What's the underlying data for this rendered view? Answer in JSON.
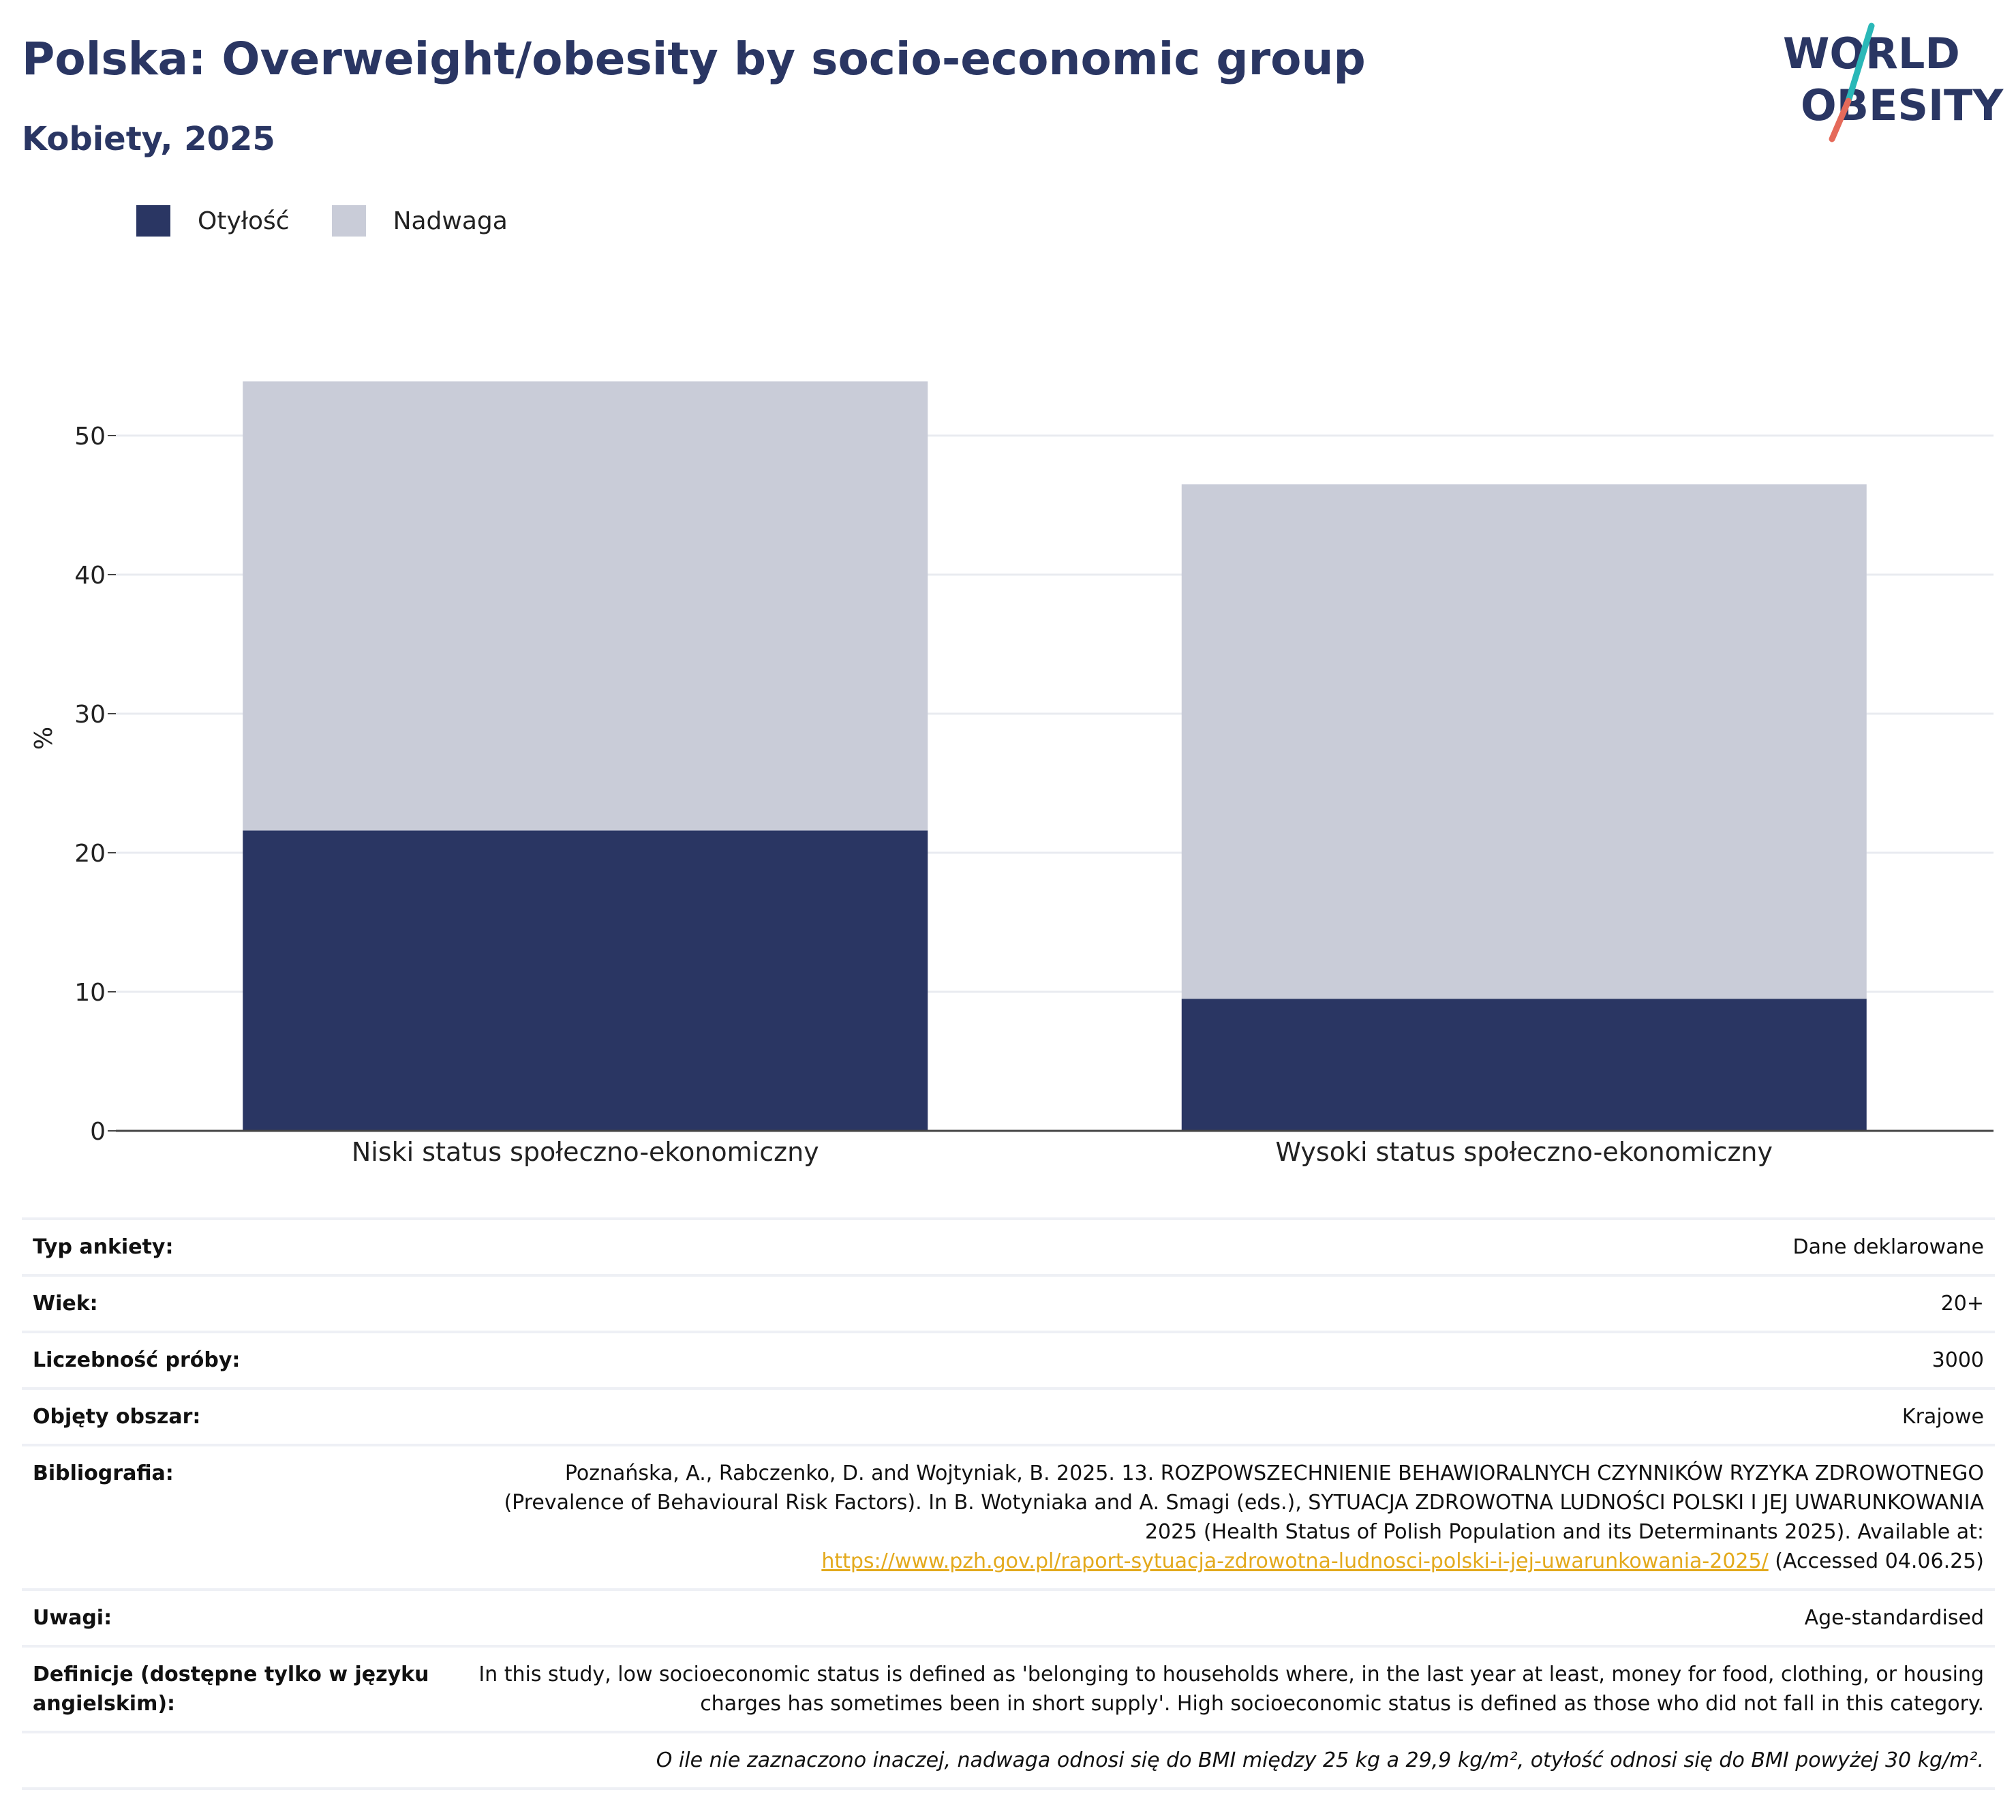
{
  "title": "Polska: Overweight/obesity by socio-economic group",
  "subtitle": "Kobiety, 2025",
  "logo": {
    "line1": "WORLD",
    "line2": "OBESITY",
    "colors": [
      "#2a3663",
      "#2ab8b8",
      "#e56a5a"
    ]
  },
  "legend": [
    {
      "label": "Otyłość",
      "color": "#2a3663"
    },
    {
      "label": "Nadwaga",
      "color": "#c9ccd8"
    }
  ],
  "chart_data": {
    "type": "bar",
    "stacked": true,
    "categories": [
      "Niski status społeczno-ekonomiczny",
      "Wysoki status społeczno-ekonomiczny"
    ],
    "series": [
      {
        "name": "Otyłość",
        "values": [
          21.6,
          9.5
        ],
        "color": "#2a3663"
      },
      {
        "name": "Nadwaga",
        "values": [
          32.3,
          37.0
        ],
        "color": "#c9ccd8"
      }
    ],
    "ylabel": "%",
    "yticks": [
      0,
      10,
      20,
      30,
      40,
      50
    ],
    "ylim": [
      0,
      55
    ],
    "grid": true
  },
  "info": {
    "survey_type_key": "Typ ankiety:",
    "survey_type_val": "Dane deklarowane",
    "age_key": "Wiek:",
    "age_val": "20+",
    "sample_key": "Liczebność próby:",
    "sample_val": "3000",
    "area_key": "Objęty obszar:",
    "area_val": "Krajowe",
    "bib_key": "Bibliografia:",
    "bib_text": "Poznańska, A., Rabczenko, D. and Wojtyniak, B. 2025. 13. ROZPOWSZECHNIENIE BEHAWIORALNYCH CZYNNIKÓW RYZYKA ZDROWOTNEGO (Prevalence of Behavioural Risk Factors). In B. Wotyniaka and A. Smagi (eds.), SYTUACJA ZDROWOTNA LUDNOŚCI POLSKI I JEJ UWARUNKOWANIA 2025 (Health Status of Polish Population and its Determinants 2025). Available at:",
    "bib_link": "https://www.pzh.gov.pl/raport-sytuacja-zdrowotna-ludnosci-polski-i-jej-uwarunkowania-2025/",
    "bib_accessed": "(Accessed 04.06.25)",
    "notes_key": "Uwagi:",
    "notes_val": "Age-standardised",
    "def_key": "Definicje (dostępne tylko w języku angielskim):",
    "def_val": "In this study, low socioeconomic status is defined as 'belonging to households where, in the last year at least, money for food, clothing, or housing charges has sometimes been in short supply'. High socioeconomic status is defined as those who did not fall in this category.",
    "footnote": "O ile nie zaznaczono inaczej, nadwaga odnosi się do BMI między 25 kg a 29,9 kg/m², otyłość odnosi się do BMI powyżej 30 kg/m²."
  }
}
